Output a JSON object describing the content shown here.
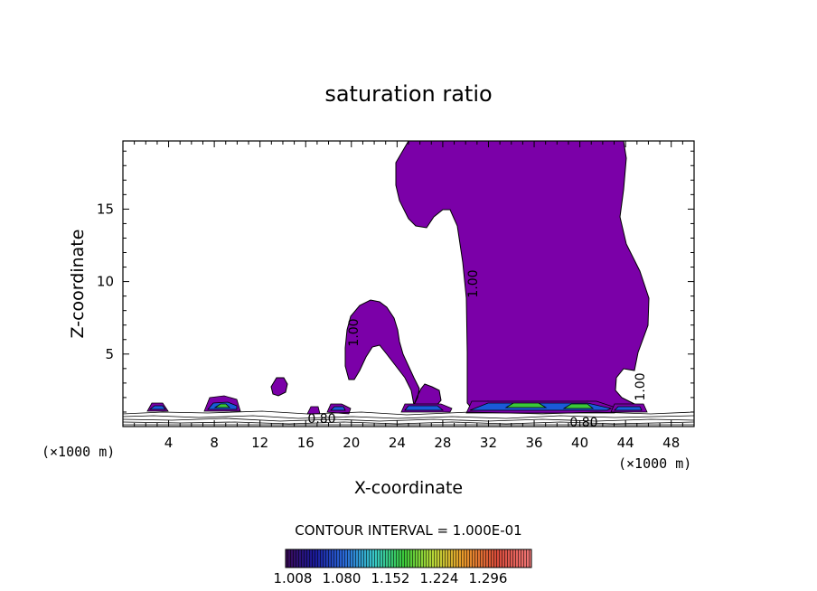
{
  "chart_data": {
    "type": "contour",
    "title": "saturation ratio",
    "xlabel": "X-coordinate",
    "ylabel": "Z-coordinate",
    "x_unit_left": "(×1000 m)",
    "x_unit_right": "(×1000 m)",
    "xlim": [
      0,
      50
    ],
    "ylim": [
      0,
      19.7
    ],
    "x_ticks": [
      4,
      8,
      12,
      16,
      20,
      24,
      28,
      32,
      36,
      40,
      44,
      48
    ],
    "y_ticks": [
      5,
      10,
      15
    ],
    "contour_labels": [
      "1.00",
      "1.00",
      "1.00",
      "0.80",
      "0.80"
    ],
    "contour_interval_text": "CONTOUR INTERVAL = 1.000E-01",
    "colorbar": {
      "ticks": [
        "1.008",
        "1.080",
        "1.152",
        "1.224",
        "1.296"
      ],
      "colors": [
        "#3a0a55",
        "#1a1a9a",
        "#2a6ad8",
        "#38c8c8",
        "#3ac83a",
        "#b8d838",
        "#e89a2a",
        "#d84a3a",
        "#f07878"
      ]
    },
    "fill_color": "#7b00a8"
  }
}
